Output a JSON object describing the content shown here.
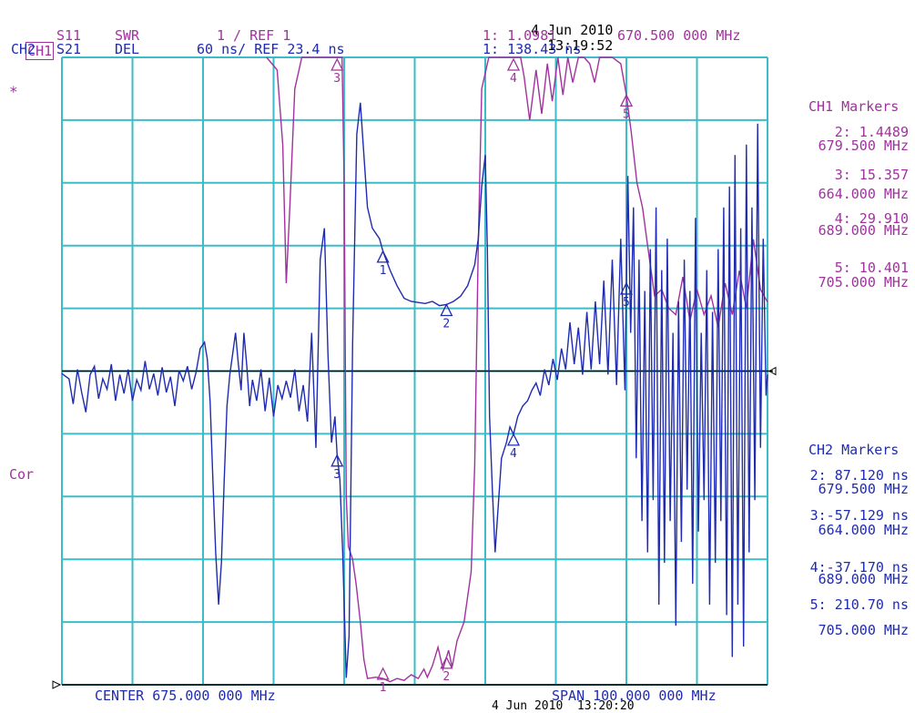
{
  "header": {
    "date_top": "4 Jun 2010",
    "time_top": "13:19:52",
    "ch1": {
      "label": "CH1",
      "param": "S11",
      "format": "SWR",
      "scale": "1 / REF 1",
      "marker_readout": "1: 1.0981",
      "marker_freq": "670.500 000 MHz"
    },
    "ch2": {
      "label": "CH2",
      "param": "S21",
      "format": "DEL",
      "scale": "60 ns/ REF 23.4 ns",
      "marker_readout": "1: 138.43 ns"
    },
    "asterisk": "*",
    "cor": "Cor"
  },
  "footer": {
    "center": "CENTER 675.000 000 MHz",
    "span": "SPAN 100.000 000 MHz",
    "date_bottom": "4 Jun 2010  13:20:20"
  },
  "ch1_markers": {
    "title": "CH1 Markers",
    "items": [
      {
        "value": "2: 1.4489",
        "freq": "679.500 MHz"
      },
      {
        "value": "3: 15.357",
        "freq": "664.000 MHz"
      },
      {
        "value": "4: 29.910",
        "freq": "689.000 MHz"
      },
      {
        "value": "5: 10.401",
        "freq": "705.000 MHz"
      }
    ]
  },
  "ch2_markers": {
    "title": "CH2 Markers",
    "items": [
      {
        "value": "2: 87.120 ns",
        "freq": "679.500 MHz"
      },
      {
        "value": "3:-57.129 ns",
        "freq": "664.000 MHz"
      },
      {
        "value": "4:-37.170 ns",
        "freq": "689.000 MHz"
      },
      {
        "value": "5: 210.70 ns",
        "freq": "705.000 MHz"
      }
    ]
  },
  "colors": {
    "grid": "#3bbcc7",
    "ch1": "#a0329e",
    "ch2": "#1f2bb0",
    "axis": "#000000"
  },
  "chart_data": {
    "type": "line",
    "x_unit": "MHz",
    "xlim": [
      625,
      725
    ],
    "grid": {
      "divisions_x": 10,
      "divisions_y": 10
    },
    "series": [
      {
        "name": "CH1 S11 SWR",
        "ylim": [
          1,
          11
        ],
        "points": [
          [
            654.0,
            11.0
          ],
          [
            655.5,
            10.8
          ],
          [
            656.3,
            9.6
          ],
          [
            656.8,
            7.4
          ],
          [
            657.3,
            8.6
          ],
          [
            658.0,
            10.5
          ],
          [
            659.0,
            11.0
          ],
          [
            664.0,
            11.0
          ],
          [
            664.7,
            11.0
          ],
          [
            665.0,
            9.0
          ],
          [
            665.3,
            4.0
          ],
          [
            665.6,
            3.2
          ],
          [
            666.2,
            3.0
          ],
          [
            666.7,
            2.6
          ],
          [
            667.3,
            2.0
          ],
          [
            667.8,
            1.4
          ],
          [
            668.3,
            1.1
          ],
          [
            669.5,
            1.12
          ],
          [
            670.5,
            1.1
          ],
          [
            671.5,
            1.05
          ],
          [
            672.5,
            1.1
          ],
          [
            673.5,
            1.07
          ],
          [
            674.5,
            1.16
          ],
          [
            675.5,
            1.1
          ],
          [
            676.3,
            1.25
          ],
          [
            676.8,
            1.12
          ],
          [
            677.5,
            1.3
          ],
          [
            678.3,
            1.6
          ],
          [
            679.0,
            1.25
          ],
          [
            679.8,
            1.55
          ],
          [
            680.3,
            1.28
          ],
          [
            681.0,
            1.7
          ],
          [
            682.0,
            2.0
          ],
          [
            683.0,
            2.8
          ],
          [
            683.5,
            4.5
          ],
          [
            684.0,
            8.0
          ],
          [
            684.5,
            10.5
          ],
          [
            685.5,
            11.0
          ],
          [
            689.0,
            11.0
          ],
          [
            690.0,
            11.0
          ],
          [
            690.5,
            10.7
          ],
          [
            691.3,
            10.0
          ],
          [
            692.2,
            10.8
          ],
          [
            693.0,
            10.1
          ],
          [
            693.8,
            10.9
          ],
          [
            694.5,
            10.3
          ],
          [
            695.3,
            11.0
          ],
          [
            696.0,
            10.4
          ],
          [
            696.7,
            11.0
          ],
          [
            697.4,
            10.6
          ],
          [
            698.2,
            11.0
          ],
          [
            699.0,
            11.0
          ],
          [
            699.8,
            10.9
          ],
          [
            700.5,
            10.6
          ],
          [
            701.2,
            11.0
          ],
          [
            702.0,
            11.0
          ],
          [
            703.0,
            11.0
          ],
          [
            704.2,
            10.9
          ],
          [
            705.0,
            10.4
          ],
          [
            705.7,
            9.8
          ],
          [
            706.5,
            9.0
          ],
          [
            707.3,
            8.6
          ],
          [
            708.0,
            8.0
          ],
          [
            709.0,
            7.2
          ],
          [
            710.0,
            7.3
          ],
          [
            711.0,
            7.0
          ],
          [
            712.0,
            6.9
          ],
          [
            713.0,
            7.5
          ],
          [
            714.0,
            6.8
          ],
          [
            715.0,
            7.3
          ],
          [
            716.0,
            6.9
          ],
          [
            717.0,
            7.2
          ],
          [
            718.0,
            6.7
          ],
          [
            719.0,
            7.4
          ],
          [
            720.0,
            6.9
          ],
          [
            721.0,
            7.6
          ],
          [
            722.0,
            7.0
          ],
          [
            723.0,
            8.1
          ],
          [
            724.0,
            7.3
          ],
          [
            725.0,
            7.1
          ]
        ]
      },
      {
        "name": "CH2 S21 DEL",
        "ylim": [
          -276.6,
          323.4
        ],
        "points": [
          [
            625.0,
            21.0
          ],
          [
            626.0,
            16.0
          ],
          [
            626.6,
            -8.0
          ],
          [
            627.2,
            25.0
          ],
          [
            627.8,
            3.0
          ],
          [
            628.4,
            -16.0
          ],
          [
            629.0,
            20.0
          ],
          [
            629.6,
            28.0
          ],
          [
            630.2,
            -3.0
          ],
          [
            630.8,
            16.0
          ],
          [
            631.4,
            6.0
          ],
          [
            632.0,
            30.0
          ],
          [
            632.6,
            -5.0
          ],
          [
            633.2,
            20.0
          ],
          [
            633.8,
            2.0
          ],
          [
            634.4,
            25.0
          ],
          [
            635.0,
            -5.0
          ],
          [
            635.6,
            15.0
          ],
          [
            636.2,
            5.0
          ],
          [
            636.8,
            33.0
          ],
          [
            637.4,
            6.0
          ],
          [
            638.0,
            21.0
          ],
          [
            638.6,
            0.0
          ],
          [
            639.2,
            27.0
          ],
          [
            639.8,
            3.0
          ],
          [
            640.4,
            18.0
          ],
          [
            641.0,
            -10.0
          ],
          [
            641.6,
            24.0
          ],
          [
            642.2,
            14.0
          ],
          [
            642.8,
            28.0
          ],
          [
            643.4,
            6.0
          ],
          [
            644.0,
            22.0
          ],
          [
            644.6,
            45.0
          ],
          [
            645.2,
            51.0
          ],
          [
            645.6,
            35.0
          ],
          [
            646.0,
            -6.0
          ],
          [
            646.4,
            -80.0
          ],
          [
            646.8,
            -150.0
          ],
          [
            647.2,
            -200.0
          ],
          [
            647.6,
            -160.0
          ],
          [
            648.0,
            -80.0
          ],
          [
            648.4,
            -10.0
          ],
          [
            648.8,
            20.0
          ],
          [
            649.2,
            40.0
          ],
          [
            649.6,
            60.0
          ],
          [
            650.0,
            30.0
          ],
          [
            650.4,
            5.0
          ],
          [
            650.8,
            60.0
          ],
          [
            651.2,
            28.0
          ],
          [
            651.6,
            -10.0
          ],
          [
            652.0,
            15.0
          ],
          [
            652.6,
            -5.0
          ],
          [
            653.2,
            25.0
          ],
          [
            653.8,
            -15.0
          ],
          [
            654.4,
            17.0
          ],
          [
            655.0,
            -20.0
          ],
          [
            655.6,
            10.0
          ],
          [
            656.2,
            -3.0
          ],
          [
            656.8,
            14.0
          ],
          [
            657.4,
            -2.0
          ],
          [
            658.0,
            25.0
          ],
          [
            658.6,
            -15.0
          ],
          [
            659.2,
            10.0
          ],
          [
            659.8,
            -25.0
          ],
          [
            660.4,
            60.0
          ],
          [
            661.0,
            -50.0
          ],
          [
            661.6,
            130.0
          ],
          [
            662.2,
            160.0
          ],
          [
            662.7,
            40.0
          ],
          [
            663.2,
            -45.0
          ],
          [
            663.7,
            -20.0
          ],
          [
            664.0,
            -57.0
          ],
          [
            664.4,
            -80.0
          ],
          [
            664.8,
            -150.0
          ],
          [
            665.3,
            -270.0
          ],
          [
            665.7,
            -230.0
          ],
          [
            666.2,
            50.0
          ],
          [
            666.8,
            250.0
          ],
          [
            667.3,
            280.0
          ],
          [
            667.8,
            230.0
          ],
          [
            668.3,
            180.0
          ],
          [
            669.0,
            160.0
          ],
          [
            670.0,
            150.0
          ],
          [
            670.5,
            138.0
          ],
          [
            671.5,
            120.0
          ],
          [
            672.5,
            105.0
          ],
          [
            673.5,
            93.0
          ],
          [
            674.5,
            90.0
          ],
          [
            675.5,
            89.0
          ],
          [
            676.5,
            88.0
          ],
          [
            677.5,
            90.0
          ],
          [
            678.5,
            86.0
          ],
          [
            679.5,
            87.0
          ],
          [
            680.5,
            90.0
          ],
          [
            681.5,
            95.0
          ],
          [
            682.5,
            105.0
          ],
          [
            683.5,
            125.0
          ],
          [
            684.0,
            150.0
          ],
          [
            684.5,
            200.0
          ],
          [
            685.0,
            230.0
          ],
          [
            685.3,
            140.0
          ],
          [
            685.6,
            -20.0
          ],
          [
            686.0,
            -90.0
          ],
          [
            686.4,
            -150.0
          ],
          [
            686.8,
            -110.0
          ],
          [
            687.3,
            -60.0
          ],
          [
            688.0,
            -45.0
          ],
          [
            688.5,
            -30.0
          ],
          [
            689.0,
            -37.0
          ],
          [
            689.6,
            -20.0
          ],
          [
            690.3,
            -10.0
          ],
          [
            691.0,
            -5.0
          ],
          [
            691.6,
            5.0
          ],
          [
            692.2,
            12.0
          ],
          [
            692.8,
            0.0
          ],
          [
            693.4,
            25.0
          ],
          [
            694.0,
            10.0
          ],
          [
            694.6,
            35.0
          ],
          [
            695.2,
            15.0
          ],
          [
            695.8,
            45.0
          ],
          [
            696.4,
            25.0
          ],
          [
            697.0,
            70.0
          ],
          [
            697.6,
            30.0
          ],
          [
            698.2,
            65.0
          ],
          [
            698.8,
            20.0
          ],
          [
            699.4,
            80.0
          ],
          [
            700.0,
            25.0
          ],
          [
            700.6,
            90.0
          ],
          [
            701.2,
            30.0
          ],
          [
            701.8,
            110.0
          ],
          [
            702.4,
            20.0
          ],
          [
            703.0,
            130.0
          ],
          [
            703.6,
            10.0
          ],
          [
            704.2,
            150.0
          ],
          [
            704.8,
            5.0
          ],
          [
            705.2,
            210.0
          ],
          [
            705.6,
            60.0
          ],
          [
            706.0,
            180.0
          ],
          [
            706.4,
            -60.0
          ],
          [
            706.8,
            130.0
          ],
          [
            707.2,
            -120.0
          ],
          [
            707.6,
            100.0
          ],
          [
            708.0,
            -150.0
          ],
          [
            708.4,
            140.0
          ],
          [
            708.8,
            -100.0
          ],
          [
            709.2,
            180.0
          ],
          [
            709.6,
            -200.0
          ],
          [
            710.0,
            120.0
          ],
          [
            710.4,
            -160.0
          ],
          [
            710.8,
            150.0
          ],
          [
            711.2,
            -120.0
          ],
          [
            711.6,
            60.0
          ],
          [
            712.0,
            -220.0
          ],
          [
            712.4,
            90.0
          ],
          [
            712.8,
            -140.0
          ],
          [
            713.2,
            130.0
          ],
          [
            713.6,
            -90.0
          ],
          [
            714.0,
            100.0
          ],
          [
            714.4,
            -180.0
          ],
          [
            714.8,
            170.0
          ],
          [
            715.2,
            -130.0
          ],
          [
            715.6,
            60.0
          ],
          [
            716.0,
            -100.0
          ],
          [
            716.4,
            120.0
          ],
          [
            716.8,
            -200.0
          ],
          [
            717.2,
            80.0
          ],
          [
            717.6,
            -160.0
          ],
          [
            718.0,
            140.0
          ],
          [
            718.4,
            -120.0
          ],
          [
            718.8,
            180.0
          ],
          [
            719.2,
            -210.0
          ],
          [
            719.6,
            200.0
          ],
          [
            720.0,
            -250.0
          ],
          [
            720.4,
            230.0
          ],
          [
            720.8,
            -200.0
          ],
          [
            721.2,
            160.0
          ],
          [
            721.6,
            -240.0
          ],
          [
            722.0,
            240.0
          ],
          [
            722.4,
            -150.0
          ],
          [
            722.8,
            180.0
          ],
          [
            723.2,
            -100.0
          ],
          [
            723.6,
            260.0
          ],
          [
            724.0,
            -50.0
          ],
          [
            724.4,
            150.0
          ],
          [
            724.8,
            0.0
          ],
          [
            725.0,
            20.0
          ]
        ]
      }
    ],
    "markers": [
      {
        "channel": "CH1",
        "label": "1",
        "freq": 670.5
      },
      {
        "channel": "CH1",
        "label": "2",
        "freq": 679.5
      },
      {
        "channel": "CH1",
        "label": "3",
        "freq": 664.0
      },
      {
        "channel": "CH1",
        "label": "4",
        "freq": 689.0
      },
      {
        "channel": "CH1",
        "label": "5",
        "freq": 705.0
      },
      {
        "channel": "CH2",
        "label": "1",
        "freq": 670.5
      },
      {
        "channel": "CH2",
        "label": "2",
        "freq": 679.5
      },
      {
        "channel": "CH2",
        "label": "3",
        "freq": 664.0
      },
      {
        "channel": "CH2",
        "label": "4",
        "freq": 689.0
      },
      {
        "channel": "CH2",
        "label": "5",
        "freq": 705.0
      }
    ],
    "ch1_reference_value": 1,
    "ch2_reference_value": 23.4
  }
}
